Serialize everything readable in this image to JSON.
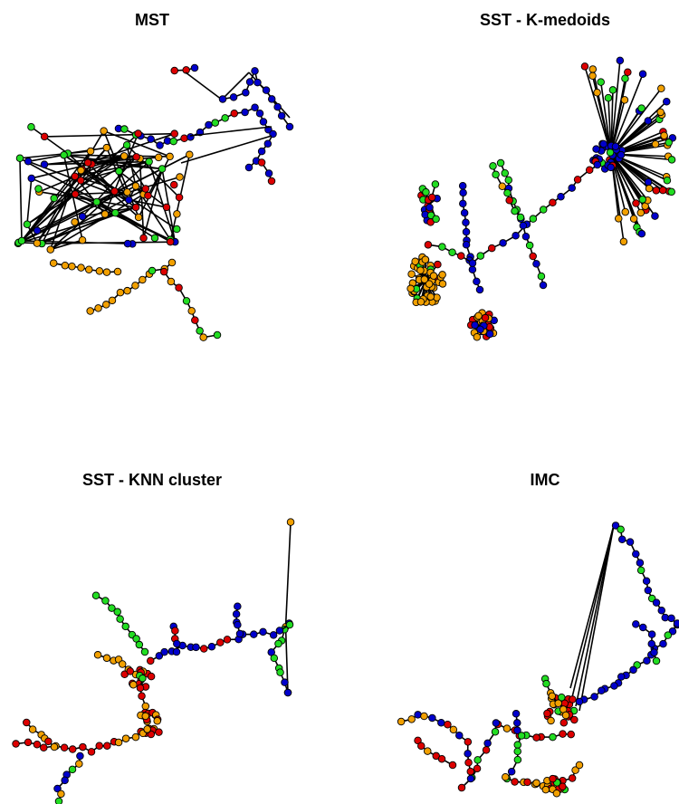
{
  "panels": [
    {
      "title": "MST"
    },
    {
      "title": "SST - K-medoids"
    },
    {
      "title": "SST - KNN cluster"
    },
    {
      "title": "IMC"
    }
  ],
  "colors": {
    "group_blue": "#0000cc",
    "group_green": "#22dd22",
    "group_red": "#dd0000",
    "group_orange": "#f2a000",
    "edge": "#000000"
  }
}
